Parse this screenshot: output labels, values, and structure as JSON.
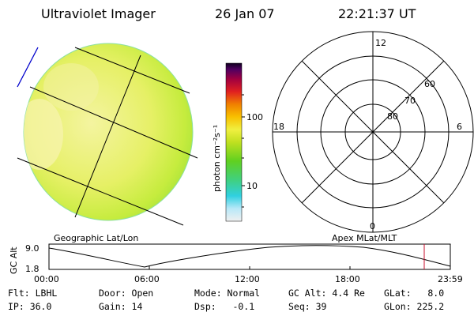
{
  "header": {
    "title": "Ultraviolet Imager",
    "date": "26 Jan 07",
    "time": "22:21:37 UT"
  },
  "colorbar": {
    "unit_label": "photon cm⁻²s⁻¹",
    "tick_high": "100",
    "tick_low": "10"
  },
  "polar": {
    "label_top": "12",
    "label_left": "18",
    "label_right": "6",
    "label_bottom": "0",
    "ring_labels": [
      "60",
      "70",
      "80"
    ]
  },
  "map_labels": {
    "left": "Geographic Lat/Lon",
    "right": "Apex MLat/MLT"
  },
  "orbit_plot": {
    "ylabel": "GC Alt",
    "ymax_label": "9.0",
    "ymin_label": "1.8",
    "xticks": [
      "00:00",
      "06:00",
      "12:00",
      "18:00",
      "23:59"
    ]
  },
  "status": {
    "flt": "Flt: LBHL",
    "door": "Door: Open",
    "mode": "Mode: Normal",
    "gc_alt": "GC Alt: 4.4 Re",
    "glat": "GLat:   8.0",
    "ip": "IP: 36.0",
    "gain": "Gain: 14",
    "dsp": "Dsp:   -0.1",
    "seq": "Seq: 39",
    "glon": "GLon: 225.2"
  },
  "colors": {
    "disk_fill": "#e6f066",
    "grid_line": "#000000",
    "orbit_marker": "#c8102e",
    "spacecraft_mark": "#0000cc"
  }
}
